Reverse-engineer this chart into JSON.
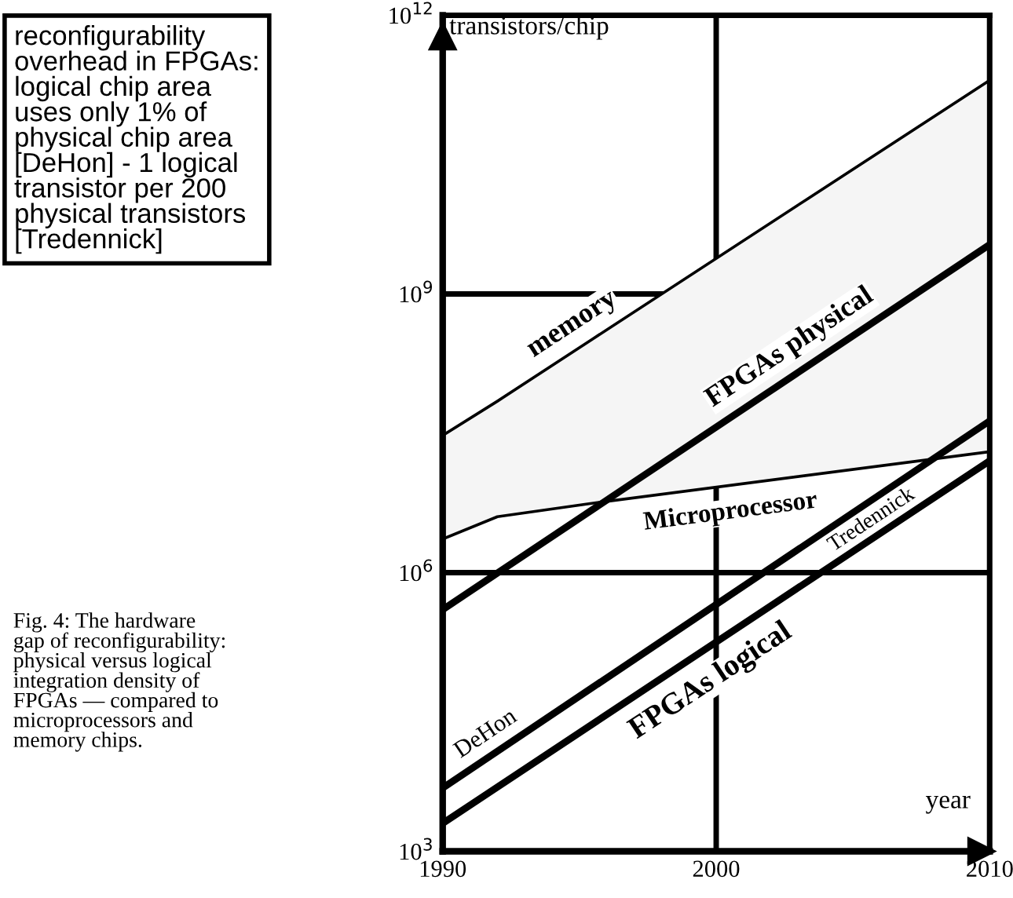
{
  "chart_data": {
    "type": "line",
    "ylabel": "transistors/chip",
    "xlabel": "year",
    "log": "y",
    "xlim": [
      1990,
      2010
    ],
    "ylim": [
      1000,
      1000000000000
    ],
    "xticks": [
      1990,
      2000,
      2010
    ],
    "yticks": [
      {
        "value": 1000,
        "label": "10$^{3}$"
      },
      {
        "value": 1000000,
        "label": "10$^{6}$"
      },
      {
        "value": 1000000000,
        "label": "10$^{9}$"
      },
      {
        "value": 1000000000000,
        "label": "10$^{12}$"
      }
    ],
    "grid": true,
    "marker": "none",
    "line_style": "solid",
    "series": [
      {
        "name": "memory",
        "color": "#000000",
        "x": [
          1990,
          1992,
          1995.5,
          2010
        ],
        "values": [
          30000000,
          70000000,
          330000000,
          200000000000
        ],
        "lower": [
          2300000,
          4000000,
          5600000,
          20000000
        ],
        "upper": [
          30000000,
          70000000,
          330000000,
          200000000000
        ]
      },
      {
        "name": "Microprocessor",
        "color": "#000000",
        "x": [
          1990,
          1992,
          1995.5,
          2010
        ],
        "values": [
          2300000,
          4000000,
          5600000,
          20000000
        ]
      },
      {
        "name": "FPGAs physical",
        "color": "#000000",
        "x": [
          1990,
          2010
        ],
        "values": [
          400000,
          3400000000
        ]
      },
      {
        "name": "DeHon",
        "color": "#000000",
        "x": [
          1990,
          2010
        ],
        "values": [
          4800,
          43000000
        ]
      },
      {
        "name": "Tredennick",
        "color": "#000000",
        "x": [
          1990,
          2010
        ],
        "values": [
          2000,
          16000000
        ]
      }
    ],
    "annotations": [
      "reconfigurability\noverhead in FPGAs:\nlogical chip area\nuses only 1% of\nphysical chip area\n[DeHon] - 1 logical\ntransistor per 200\nphysical transistors\n[Tredennick]",
      "Fig. 4: The hardware\ngap of reconfigurability:\nphysical versus logical\nintegration density of\nFPGAs — compared to\nmicroprocessors and\nmemory chips.",
      "FPGAs logical"
    ]
  }
}
